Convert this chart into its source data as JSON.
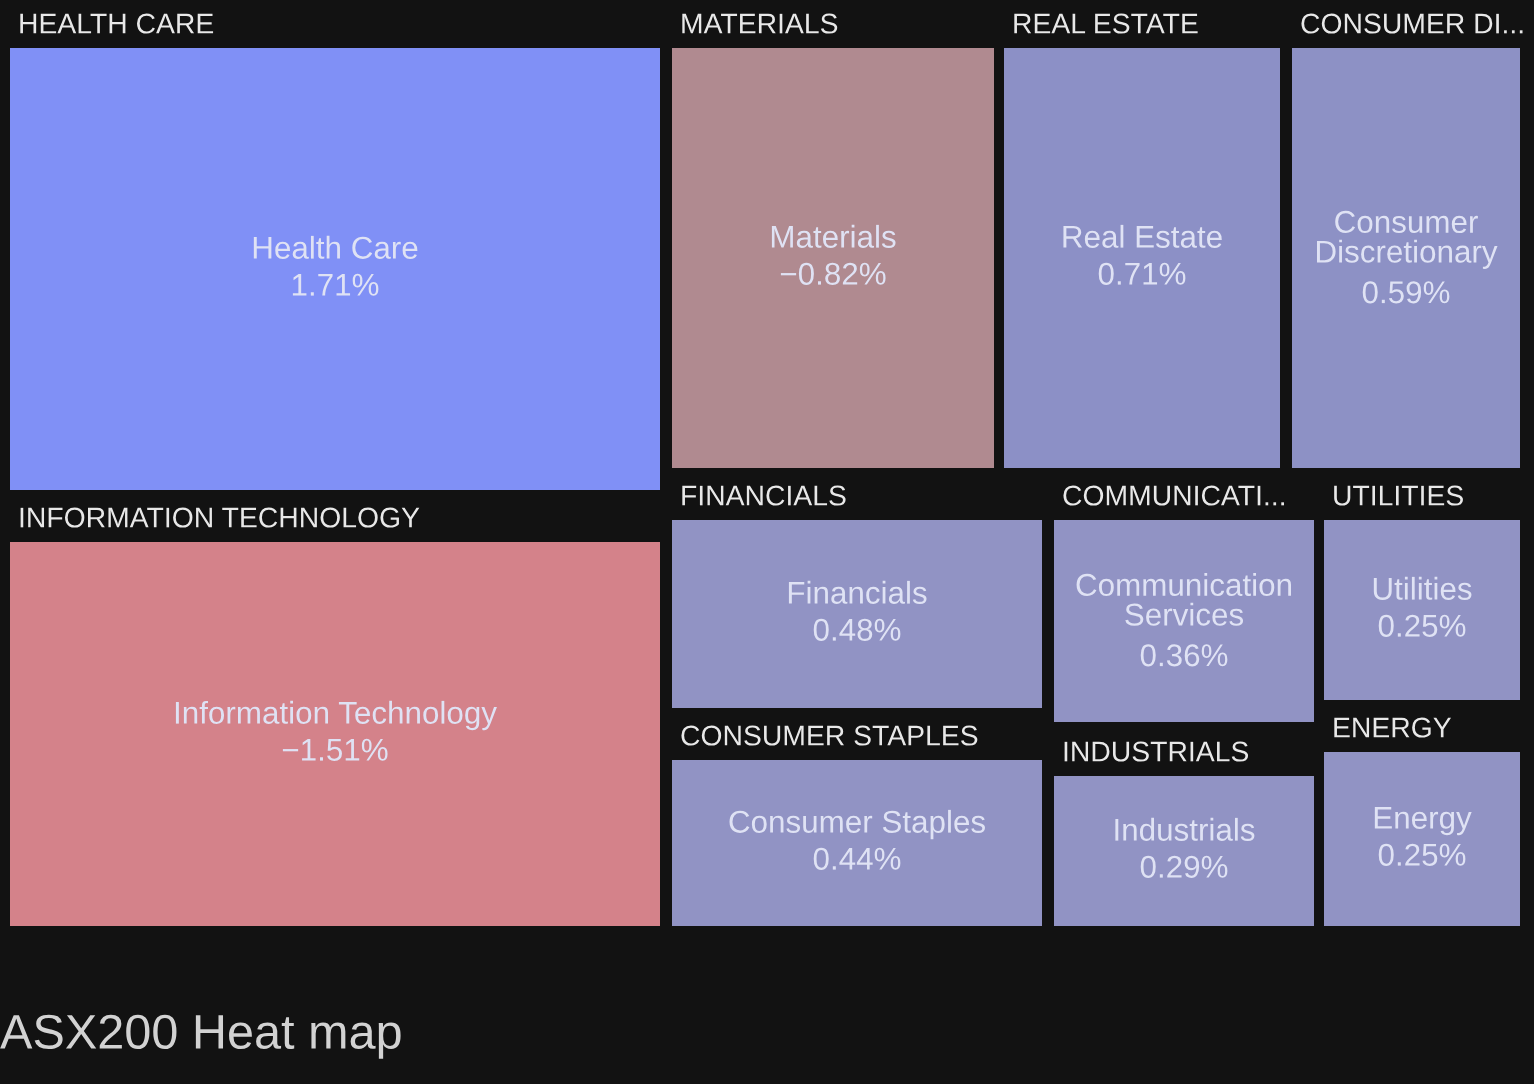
{
  "chart_data": {
    "type": "other",
    "title": "ASX200 Heat map",
    "categories": [
      "Health Care",
      "Information Technology",
      "Materials",
      "Real Estate",
      "Consumer Discretionary",
      "Financials",
      "Consumer Staples",
      "Communication Services",
      "Industrials",
      "Utilities",
      "Energy"
    ],
    "values": [
      1.71,
      -1.51,
      -0.82,
      0.71,
      0.59,
      0.48,
      0.44,
      0.36,
      0.29,
      0.25,
      0.25
    ],
    "value_labels": [
      "1.71%",
      "−1.51%",
      "−0.82%",
      "0.71%",
      "0.59%",
      "0.48%",
      "0.44%",
      "0.36%",
      "0.29%",
      "0.25%",
      "0.25%"
    ],
    "colors": [
      "#8090f6",
      "#d4828a",
      "#b08a90",
      "#8c90c6",
      "#8d91c5",
      "#9193c4",
      "#9193c4",
      "#9193c4",
      "#9193c4",
      "#9193c4",
      "#9193c4"
    ],
    "annotations": [
      "HEALTH CARE",
      "INFORMATION TECHNOLOGY",
      "MATERIALS",
      "REAL ESTATE",
      "CONSUMER DI...",
      "FINANCIALS",
      "CONSUMER STAPLES",
      "COMMUNICATI...",
      "INDUSTRIALS",
      "UTILITIES",
      "ENERGY"
    ]
  }
}
